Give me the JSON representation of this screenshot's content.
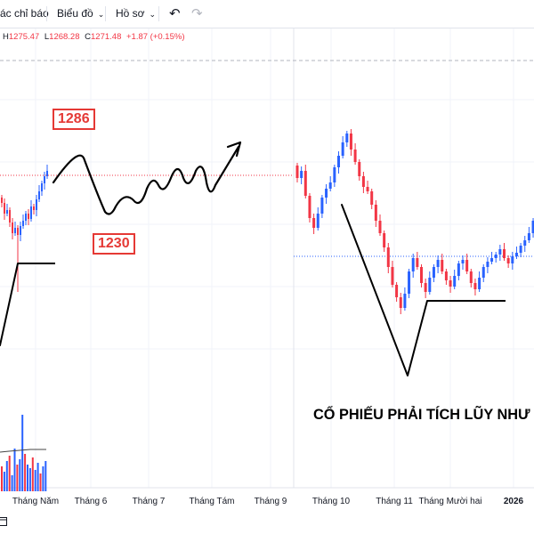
{
  "toolbar": {
    "indicators_label": "ác chỉ báo",
    "chart_label": "Biểu đồ",
    "profile_label": "Hồ sơ",
    "undo_icon": "undo-icon",
    "redo_icon": "redo-icon"
  },
  "ohlc": {
    "h_key": "H",
    "h_val": "1275.47",
    "l_key": "L",
    "l_val": "1268.28",
    "c_key": "C",
    "c_val": "1271.48",
    "change": "+1.87 (+0.15%)"
  },
  "annotations": {
    "label_high": "1286",
    "label_low": "1230",
    "caption": "CỔ PHIẾU PHẢI TÍCH LŨY NHƯ"
  },
  "time_axis": [
    "Tháng Năm",
    "Tháng 6",
    "Tháng 7",
    "Tháng Tám",
    "Tháng 9",
    "Tháng 10",
    "Tháng 11",
    "Tháng Mười hai",
    "2026"
  ],
  "colors": {
    "up": "#2962ff",
    "down": "#f23645",
    "accent": "#e53935",
    "grid": "#f0f3fa"
  }
}
